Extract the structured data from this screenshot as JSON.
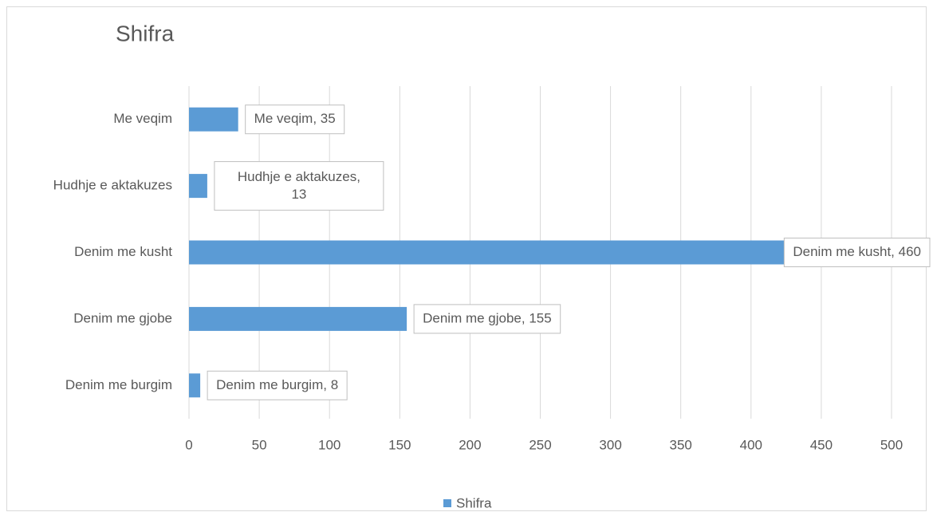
{
  "chart_data": {
    "type": "hbar",
    "title": "Shifra",
    "categories": [
      "Denim me burgim",
      "Denim me gjobe",
      "Denim me kusht",
      "Hudhje e aktakuzes",
      "Me veqim"
    ],
    "series": [
      {
        "name": "Shifra",
        "color": "#5b9bd5",
        "values": [
          8,
          155,
          460,
          13,
          35
        ],
        "value_labels": [
          "Denim me burgim, 8",
          "Denim me gjobe, 155",
          "Denim me kusht, 460",
          "Hudhje e aktakuzes, 13",
          "Me veqim, 35"
        ]
      }
    ],
    "xlim": [
      0,
      500
    ],
    "xticks": [
      0,
      50,
      100,
      150,
      200,
      250,
      300,
      350,
      400,
      450,
      500
    ],
    "grid": true,
    "legend": "bottom"
  }
}
